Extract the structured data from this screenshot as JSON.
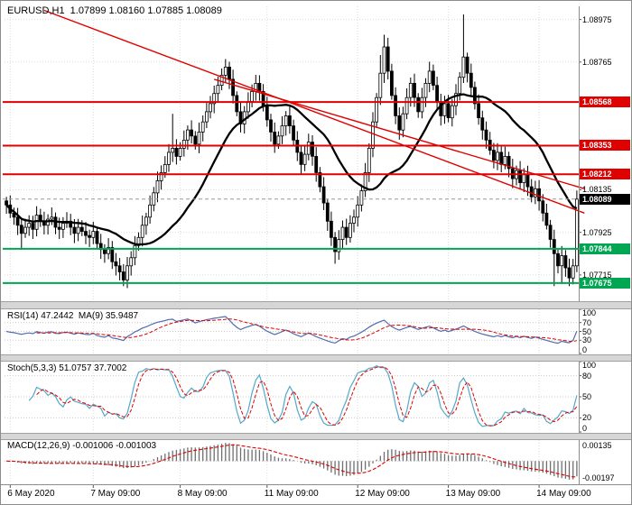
{
  "header": {
    "ohlc_line": "EURUSD,H1  1.07899 1.08160 1.07885 1.08089"
  },
  "chart_data": {
    "type": "candlestick",
    "symbol": "EURUSD",
    "timeframe": "H1",
    "current_ohlc": {
      "open": 1.07899,
      "high": 1.0816,
      "low": 1.07885,
      "close": 1.08089
    },
    "price_range": [
      1.0759,
      1.0904
    ],
    "price_axis_ticks": [
      "1.08975",
      "1.08765",
      "1.08135",
      "1.07925",
      "1.07715"
    ],
    "first_open": 1.0808,
    "closes": [
      1.0806,
      1.0802,
      1.08,
      1.0796,
      1.0792,
      1.0795,
      1.0797,
      1.0794,
      1.0801,
      1.0798,
      1.0796,
      1.0799,
      1.08,
      1.0795,
      1.0794,
      1.0797,
      1.0798,
      1.0795,
      1.0792,
      1.0795,
      1.0793,
      1.0791,
      1.079,
      1.0793,
      1.0787,
      1.0784,
      1.0782,
      1.0785,
      1.0778,
      1.0776,
      1.0773,
      1.0769,
      1.0776,
      1.078,
      1.0786,
      1.079,
      1.0796,
      1.08,
      1.0806,
      1.0812,
      1.0818,
      1.0822,
      1.0826,
      1.0832,
      1.0834,
      1.083,
      1.0834,
      1.0838,
      1.0843,
      1.084,
      1.0836,
      1.0842,
      1.0847,
      1.0852,
      1.0856,
      1.0861,
      1.0865,
      1.087,
      1.0874,
      1.0868,
      1.086,
      1.0852,
      1.0846,
      1.0852,
      1.0857,
      1.0862,
      1.0866,
      1.0862,
      1.0855,
      1.0848,
      1.0842,
      1.0836,
      1.084,
      1.0845,
      1.085,
      1.0845,
      1.0838,
      1.0832,
      1.0826,
      1.0831,
      1.0837,
      1.083,
      1.0822,
      1.0815,
      1.0807,
      1.0798,
      1.079,
      1.0783,
      1.0789,
      1.0795,
      1.079,
      1.0797,
      1.08,
      1.0806,
      1.0813,
      1.0822,
      1.0834,
      1.0847,
      1.0859,
      1.0871,
      1.0884,
      1.0872,
      1.086,
      1.085,
      1.0843,
      1.0851,
      1.0859,
      1.0866,
      1.0859,
      1.0852,
      1.0859,
      1.0866,
      1.0872,
      1.0865,
      1.0857,
      1.085,
      1.0856,
      1.0849,
      1.0855,
      1.0861,
      1.0869,
      1.0879,
      1.0871,
      1.0864,
      1.0856,
      1.0849,
      1.0843,
      1.0838,
      1.0833,
      1.0828,
      1.0832,
      1.0826,
      1.083,
      1.0824,
      1.0819,
      1.0823,
      1.0817,
      1.0821,
      1.0815,
      1.081,
      1.0814,
      1.0808,
      1.0802,
      1.0796,
      1.0789,
      1.0782,
      1.0776,
      1.0781,
      1.0775,
      1.077,
      1.0776,
      1.08089
    ],
    "wick_overrides": {
      "4": {
        "l": 1.0784
      },
      "31": {
        "l": 1.0766
      },
      "44": {
        "h": 1.0851
      },
      "58": {
        "h": 1.0878
      },
      "87": {
        "l": 1.0777
      },
      "99": {
        "h": 1.088
      },
      "100": {
        "h": 1.089
      },
      "121": {
        "h": 1.09
      },
      "145": {
        "l": 1.0766
      },
      "147": {
        "l": 1.0767
      },
      "149": {
        "l": 1.0766
      }
    },
    "ma_period": 22,
    "candle_colors": {
      "bull": "#ffffff",
      "bear": "#000000",
      "outline": "#000000",
      "ma": "#000000"
    },
    "levels": [
      {
        "price": 1.08568,
        "label": "1.08568",
        "color": "#e00000",
        "kind": "resistance"
      },
      {
        "price": 1.08353,
        "label": "1.08353",
        "color": "#e00000",
        "kind": "resistance"
      },
      {
        "price": 1.08212,
        "label": "1.08212",
        "color": "#e00000",
        "kind": "resistance"
      },
      {
        "price": 1.07844,
        "label": "1.07844",
        "color": "#00a651",
        "kind": "support"
      },
      {
        "price": 1.07675,
        "label": "1.07675",
        "color": "#00a651",
        "kind": "support"
      }
    ],
    "current_price": {
      "price": 1.08089,
      "label": "1.08089",
      "color": "#000000"
    },
    "trendlines": [
      {
        "i1": 10,
        "p1": 1.0902,
        "i2": 153,
        "p2": 1.0802
      },
      {
        "i1": 55,
        "p1": 1.0868,
        "i2": 153,
        "p2": 1.0814
      }
    ],
    "trendline_color": "#e00000",
    "time_axis": [
      {
        "label": "6 May 2020",
        "i": 1
      },
      {
        "label": "7 May 09:00",
        "i": 23
      },
      {
        "label": "8 May 09:00",
        "i": 46
      },
      {
        "label": "11 May 09:00",
        "i": 69
      },
      {
        "label": "12 May 09:00",
        "i": 93
      },
      {
        "label": "13 May 09:00",
        "i": 117
      },
      {
        "label": "14 May 09:00",
        "i": 141
      }
    ],
    "indicators": {
      "rsi": {
        "label": "RSI(14) 47.2442  MA(9) 35.9487",
        "value": "47.2442",
        "ma_value": "35.9487",
        "period": 14,
        "ma_period": 9,
        "levels": [
          30,
          50,
          70
        ],
        "axis_labels": [
          "100",
          "70",
          "50",
          "30",
          "0"
        ],
        "line_color": "#4f6caf",
        "ma_color": "#e00000"
      },
      "stoch": {
        "label": "Stoch(5,3,3) 51.0757 37.7002",
        "k_value": "51.0757",
        "d_value": "37.7002",
        "levels": [
          20,
          50,
          80
        ],
        "axis_labels": [
          "100",
          "80",
          "50",
          "20",
          "0"
        ],
        "k_color": "#55a7c9",
        "d_color": "#e00000"
      },
      "macd": {
        "label": "MACD(12,26,9) -0.001006 -0.001003",
        "value": "-0.001006",
        "signal_value": "-0.001003",
        "fast": 12,
        "slow": 26,
        "signal": 9,
        "axis_labels": [
          "0.00135",
          "-0.00197"
        ],
        "hist_color": "#6e6e6e",
        "signal_color": "#e00000"
      }
    }
  }
}
